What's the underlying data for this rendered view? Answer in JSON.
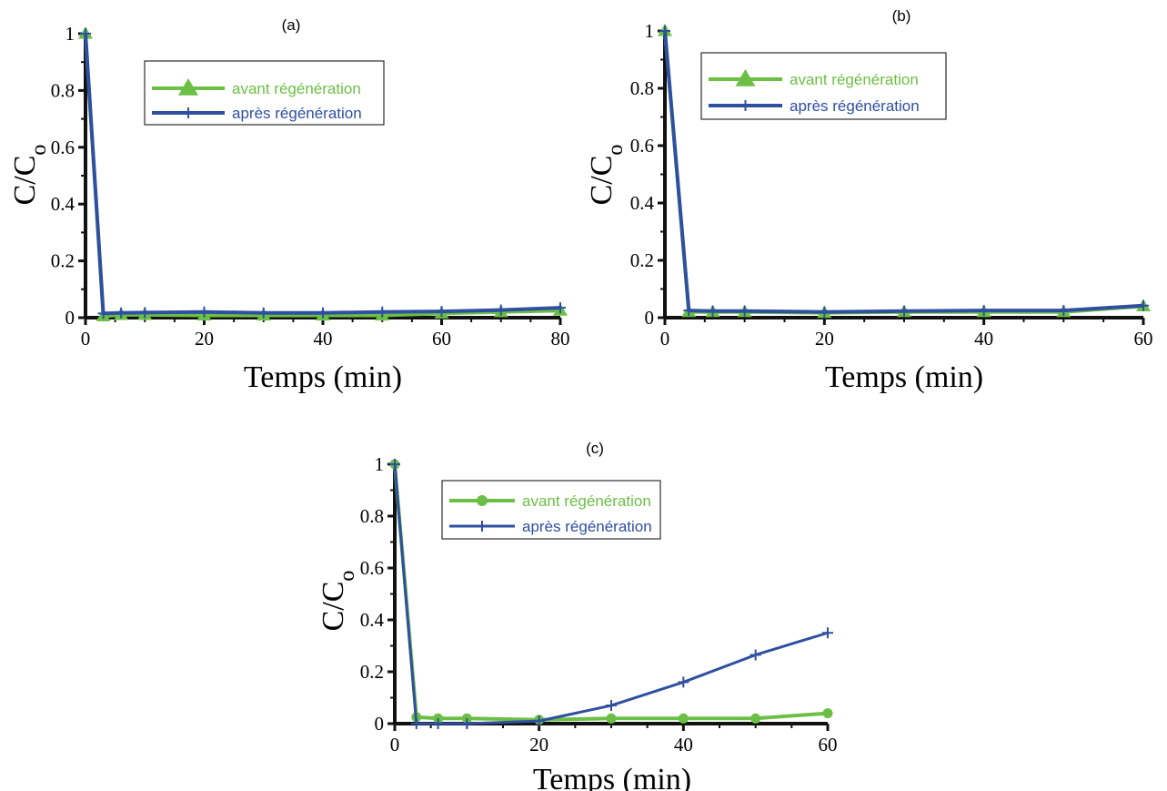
{
  "colors": {
    "green": "#6cbf45",
    "blue": "#2f4fa1",
    "axis": "#111111"
  },
  "chart_data": [
    {
      "type": "line",
      "panel_label": "(a)",
      "xlabel": "Temps (min)",
      "ylabel_main": "C/C",
      "ylabel_sub": "o",
      "xlim": [
        0,
        80
      ],
      "ylim": [
        0,
        1
      ],
      "xticks": [
        0,
        20,
        40,
        60,
        80
      ],
      "yticks": [
        0,
        0.2,
        0.4,
        0.6,
        0.8,
        1
      ],
      "ytick_labels": [
        "0",
        "0.2",
        "0.4",
        "0.6",
        "0.8",
        "1"
      ],
      "legend_position": "top-center",
      "series": [
        {
          "name": "avant régénération",
          "color": "#6cbf45",
          "marker": "triangle",
          "x": [
            0,
            3,
            6,
            10,
            20,
            30,
            40,
            50,
            60,
            70,
            80
          ],
          "y": [
            1,
            0.005,
            0.01,
            0.01,
            0.008,
            0.008,
            0.008,
            0.008,
            0.015,
            0.02,
            0.025
          ]
        },
        {
          "name": "après régénération",
          "color": "#2f4fa1",
          "marker": "plus",
          "x": [
            0,
            3,
            6,
            10,
            20,
            30,
            40,
            50,
            60,
            70,
            80
          ],
          "y": [
            1,
            0.015,
            0.017,
            0.018,
            0.02,
            0.017,
            0.017,
            0.02,
            0.022,
            0.027,
            0.035
          ]
        }
      ]
    },
    {
      "type": "line",
      "panel_label": "(b)",
      "xlabel": "Temps (min)",
      "ylabel_main": "C/C",
      "ylabel_sub": "o",
      "xlim": [
        0,
        60
      ],
      "ylim": [
        0,
        1
      ],
      "xticks": [
        0,
        20,
        40,
        60
      ],
      "yticks": [
        0,
        0.2,
        0.4,
        0.6,
        0.8,
        1
      ],
      "ytick_labels": [
        "0",
        "0.2",
        "0.4",
        "0.6",
        "0.8",
        "1"
      ],
      "legend_position": "top-center",
      "series": [
        {
          "name": "avant régénération",
          "color": "#6cbf45",
          "marker": "triangle",
          "x": [
            0,
            3,
            6,
            10,
            20,
            30,
            40,
            50,
            60
          ],
          "y": [
            1,
            0.02,
            0.02,
            0.02,
            0.017,
            0.02,
            0.02,
            0.02,
            0.04
          ]
        },
        {
          "name": "après régénération",
          "color": "#2f4fa1",
          "marker": "plus",
          "x": [
            0,
            3,
            6,
            10,
            20,
            30,
            40,
            50,
            60
          ],
          "y": [
            1,
            0.025,
            0.023,
            0.023,
            0.02,
            0.023,
            0.025,
            0.025,
            0.042
          ]
        }
      ]
    },
    {
      "type": "line",
      "panel_label": "(c)",
      "xlabel": "Temps (min)",
      "ylabel_main": "C/C",
      "ylabel_sub": "o",
      "xlim": [
        0,
        60
      ],
      "ylim": [
        0,
        1
      ],
      "xticks": [
        0,
        20,
        40,
        60
      ],
      "yticks": [
        0,
        0.2,
        0.4,
        0.6,
        0.8,
        1
      ],
      "ytick_labels": [
        "0",
        "0.2",
        "0.4",
        "0.6",
        "0.8",
        "1"
      ],
      "legend_position": "top-center",
      "series": [
        {
          "name": "avant régénération",
          "color": "#6cbf45",
          "marker": "circle",
          "x": [
            0,
            3,
            6,
            10,
            20,
            30,
            40,
            50,
            60
          ],
          "y": [
            1,
            0.025,
            0.02,
            0.02,
            0.015,
            0.02,
            0.02,
            0.02,
            0.04
          ]
        },
        {
          "name": "après régénération",
          "color": "#2f4fa1",
          "marker": "plus",
          "x": [
            0,
            3,
            6,
            10,
            20,
            30,
            40,
            50,
            60
          ],
          "y": [
            1,
            0,
            0,
            0,
            0.01,
            0.07,
            0.16,
            0.265,
            0.35
          ]
        }
      ]
    }
  ]
}
